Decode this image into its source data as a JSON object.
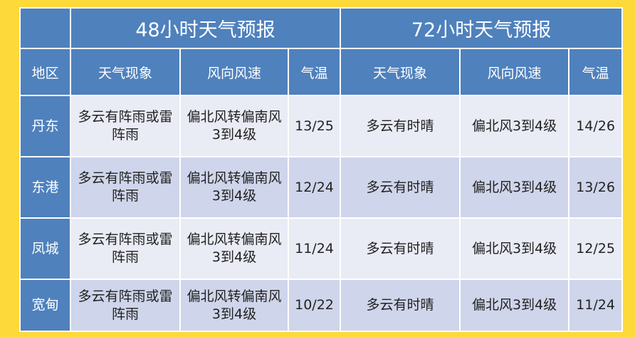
{
  "table": {
    "group_headers": [
      "48小时天气预报",
      "72小时天气预报"
    ],
    "column_headers": [
      "地区",
      "天气现象",
      "风向风速",
      "气温",
      "天气现象",
      "风向风速",
      "气温"
    ],
    "rows": [
      {
        "region": "丹东",
        "weather48": "多云有阵雨或雷阵雨",
        "wind48": "偏北风转偏南风3到4级",
        "temp48": "13/25",
        "weather72": "多云有时晴",
        "wind72": "偏北风3到4级",
        "temp72": "14/26"
      },
      {
        "region": "东港",
        "weather48": "多云有阵雨或雷阵雨",
        "wind48": "偏北风转偏南风3到4级",
        "temp48": "12/24",
        "weather72": "多云有时晴",
        "wind72": "偏北风3到4级",
        "temp72": "13/26"
      },
      {
        "region": "凤城",
        "weather48": "多云有阵雨或雷阵雨",
        "wind48": "偏北风转偏南风3到4级",
        "temp48": "11/24",
        "weather72": "多云有时晴",
        "wind72": "偏北风3到4级",
        "temp72": "12/25"
      },
      {
        "region": "宽甸",
        "weather48": "多云有阵雨或雷阵雨",
        "wind48": "偏北风转偏南风3到4级",
        "temp48": "10/22",
        "weather72": "多云有时晴",
        "wind72": "偏北风3到4级",
        "temp72": "11/24"
      }
    ]
  },
  "colors": {
    "header": "#4f81bd",
    "row_light": "#e9ebf5",
    "row_dark": "#cfd5ea",
    "background": "#fdd93a"
  }
}
